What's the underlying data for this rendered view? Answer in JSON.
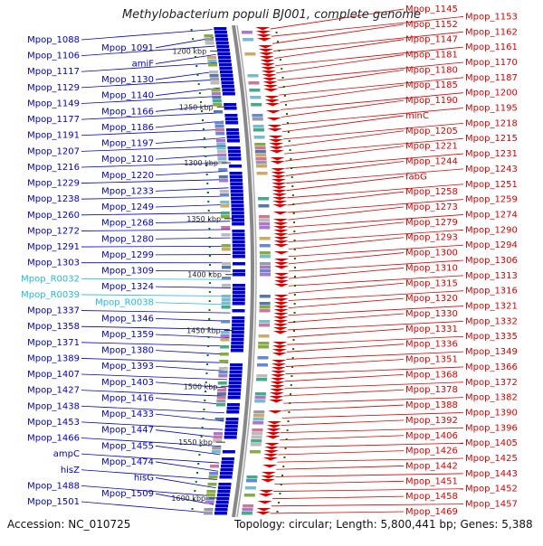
{
  "title": "Methylobacterium populi BJ001, complete genome",
  "footer": {
    "accession_label": "Accession:",
    "accession": "NC_010725",
    "summary": "Topology: circular; Length: 5,800,441 bp; Genes: 5,388"
  },
  "colors": {
    "minus_strand": "#0000cc",
    "plus_strand": "#dd0000",
    "rna": "#22bbdd",
    "tick": "#007700",
    "backbone": "#888888"
  },
  "ticks": [
    {
      "label": "1200 kbp",
      "kbp": 1200
    },
    {
      "label": "1250 kbp",
      "kbp": 1250
    },
    {
      "label": "1300 kbp",
      "kbp": 1300
    },
    {
      "label": "1350 kbp",
      "kbp": 1350
    },
    {
      "label": "1400 kbp",
      "kbp": 1400
    },
    {
      "label": "1450 kbp",
      "kbp": 1450
    },
    {
      "label": "1500 kbp",
      "kbp": 1500
    },
    {
      "label": "1550 kbp",
      "kbp": 1550
    },
    {
      "label": "1600 kbp",
      "kbp": 1600
    }
  ],
  "left_labels": [
    {
      "text": "Mpop_1088",
      "kind": "gene"
    },
    {
      "text": "Mpop_1091",
      "kind": "gene"
    },
    {
      "text": "Mpop_1106",
      "kind": "gene"
    },
    {
      "text": "amiF",
      "kind": "gene"
    },
    {
      "text": "Mpop_1117",
      "kind": "gene"
    },
    {
      "text": "Mpop_1130",
      "kind": "gene"
    },
    {
      "text": "Mpop_1129",
      "kind": "gene"
    },
    {
      "text": "Mpop_1140",
      "kind": "gene"
    },
    {
      "text": "Mpop_1149",
      "kind": "gene"
    },
    {
      "text": "Mpop_1166",
      "kind": "gene"
    },
    {
      "text": "Mpop_1177",
      "kind": "gene"
    },
    {
      "text": "Mpop_1186",
      "kind": "gene"
    },
    {
      "text": "Mpop_1191",
      "kind": "gene"
    },
    {
      "text": "Mpop_1197",
      "kind": "gene"
    },
    {
      "text": "Mpop_1207",
      "kind": "gene"
    },
    {
      "text": "Mpop_1210",
      "kind": "gene"
    },
    {
      "text": "Mpop_1216",
      "kind": "gene"
    },
    {
      "text": "Mpop_1220",
      "kind": "gene"
    },
    {
      "text": "Mpop_1229",
      "kind": "gene"
    },
    {
      "text": "Mpop_1233",
      "kind": "gene"
    },
    {
      "text": "Mpop_1238",
      "kind": "gene"
    },
    {
      "text": "Mpop_1249",
      "kind": "gene"
    },
    {
      "text": "Mpop_1260",
      "kind": "gene"
    },
    {
      "text": "Mpop_1268",
      "kind": "gene"
    },
    {
      "text": "Mpop_1272",
      "kind": "gene"
    },
    {
      "text": "Mpop_1280",
      "kind": "gene"
    },
    {
      "text": "Mpop_1291",
      "kind": "gene"
    },
    {
      "text": "Mpop_1299",
      "kind": "gene"
    },
    {
      "text": "Mpop_1303",
      "kind": "gene"
    },
    {
      "text": "Mpop_1309",
      "kind": "gene"
    },
    {
      "text": "Mpop_R0032",
      "kind": "rna"
    },
    {
      "text": "Mpop_1324",
      "kind": "gene"
    },
    {
      "text": "Mpop_R0039",
      "kind": "rna"
    },
    {
      "text": "Mpop_R0038",
      "kind": "rna"
    },
    {
      "text": "Mpop_1337",
      "kind": "gene"
    },
    {
      "text": "Mpop_1346",
      "kind": "gene"
    },
    {
      "text": "Mpop_1358",
      "kind": "gene"
    },
    {
      "text": "Mpop_1359",
      "kind": "gene"
    },
    {
      "text": "Mpop_1371",
      "kind": "gene"
    },
    {
      "text": "Mpop_1380",
      "kind": "gene"
    },
    {
      "text": "Mpop_1389",
      "kind": "gene"
    },
    {
      "text": "Mpop_1393",
      "kind": "gene"
    },
    {
      "text": "Mpop_1407",
      "kind": "gene"
    },
    {
      "text": "Mpop_1403",
      "kind": "gene"
    },
    {
      "text": "Mpop_1427",
      "kind": "gene"
    },
    {
      "text": "Mpop_1416",
      "kind": "gene"
    },
    {
      "text": "Mpop_1438",
      "kind": "gene"
    },
    {
      "text": "Mpop_1433",
      "kind": "gene"
    },
    {
      "text": "Mpop_1453",
      "kind": "gene"
    },
    {
      "text": "Mpop_1447",
      "kind": "gene"
    },
    {
      "text": "Mpop_1466",
      "kind": "gene"
    },
    {
      "text": "Mpop_1455",
      "kind": "gene"
    },
    {
      "text": "ampC",
      "kind": "gene"
    },
    {
      "text": "Mpop_1474",
      "kind": "gene"
    },
    {
      "text": "hisZ",
      "kind": "gene"
    },
    {
      "text": "hisG",
      "kind": "gene"
    },
    {
      "text": "Mpop_1488",
      "kind": "gene"
    },
    {
      "text": "Mpop_1509",
      "kind": "gene"
    },
    {
      "text": "Mpop_1501",
      "kind": "gene"
    }
  ],
  "right_labels": [
    {
      "text": "Mpop_1145"
    },
    {
      "text": "Mpop_1153"
    },
    {
      "text": "Mpop_1152"
    },
    {
      "text": "Mpop_1162"
    },
    {
      "text": "Mpop_1147"
    },
    {
      "text": "Mpop_1161"
    },
    {
      "text": "Mpop_1181"
    },
    {
      "text": "Mpop_1170"
    },
    {
      "text": "Mpop_1180"
    },
    {
      "text": "Mpop_1187"
    },
    {
      "text": "Mpop_1185"
    },
    {
      "text": "Mpop_1200"
    },
    {
      "text": "Mpop_1190"
    },
    {
      "text": "Mpop_1195"
    },
    {
      "text": "minC"
    },
    {
      "text": "Mpop_1218"
    },
    {
      "text": "Mpop_1205"
    },
    {
      "text": "Mpop_1215"
    },
    {
      "text": "Mpop_1221"
    },
    {
      "text": "Mpop_1231"
    },
    {
      "text": "Mpop_1244"
    },
    {
      "text": "Mpop_1243"
    },
    {
      "text": "fabG"
    },
    {
      "text": "Mpop_1251"
    },
    {
      "text": "Mpop_1258"
    },
    {
      "text": "Mpop_1259"
    },
    {
      "text": "Mpop_1273"
    },
    {
      "text": "Mpop_1274"
    },
    {
      "text": "Mpop_1279"
    },
    {
      "text": "Mpop_1290"
    },
    {
      "text": "Mpop_1293"
    },
    {
      "text": "Mpop_1294"
    },
    {
      "text": "Mpop_1300"
    },
    {
      "text": "Mpop_1306"
    },
    {
      "text": "Mpop_1310"
    },
    {
      "text": "Mpop_1313"
    },
    {
      "text": "Mpop_1315"
    },
    {
      "text": "Mpop_1316"
    },
    {
      "text": "Mpop_1320"
    },
    {
      "text": "Mpop_1321"
    },
    {
      "text": "Mpop_1330"
    },
    {
      "text": "Mpop_1332"
    },
    {
      "text": "Mpop_1331"
    },
    {
      "text": "Mpop_1335"
    },
    {
      "text": "Mpop_1336"
    },
    {
      "text": "Mpop_1349"
    },
    {
      "text": "Mpop_1351"
    },
    {
      "text": "Mpop_1366"
    },
    {
      "text": "Mpop_1368"
    },
    {
      "text": "Mpop_1372"
    },
    {
      "text": "Mpop_1378"
    },
    {
      "text": "Mpop_1382"
    },
    {
      "text": "Mpop_1388"
    },
    {
      "text": "Mpop_1390"
    },
    {
      "text": "Mpop_1392"
    },
    {
      "text": "Mpop_1396"
    },
    {
      "text": "Mpop_1406"
    },
    {
      "text": "Mpop_1405"
    },
    {
      "text": "Mpop_1426"
    },
    {
      "text": "Mpop_1425"
    },
    {
      "text": "Mpop_1442"
    },
    {
      "text": "Mpop_1443"
    },
    {
      "text": "Mpop_1451"
    },
    {
      "text": "Mpop_1452"
    },
    {
      "text": "Mpop_1458"
    },
    {
      "text": "Mpop_1457"
    },
    {
      "text": "Mpop_1469"
    }
  ]
}
